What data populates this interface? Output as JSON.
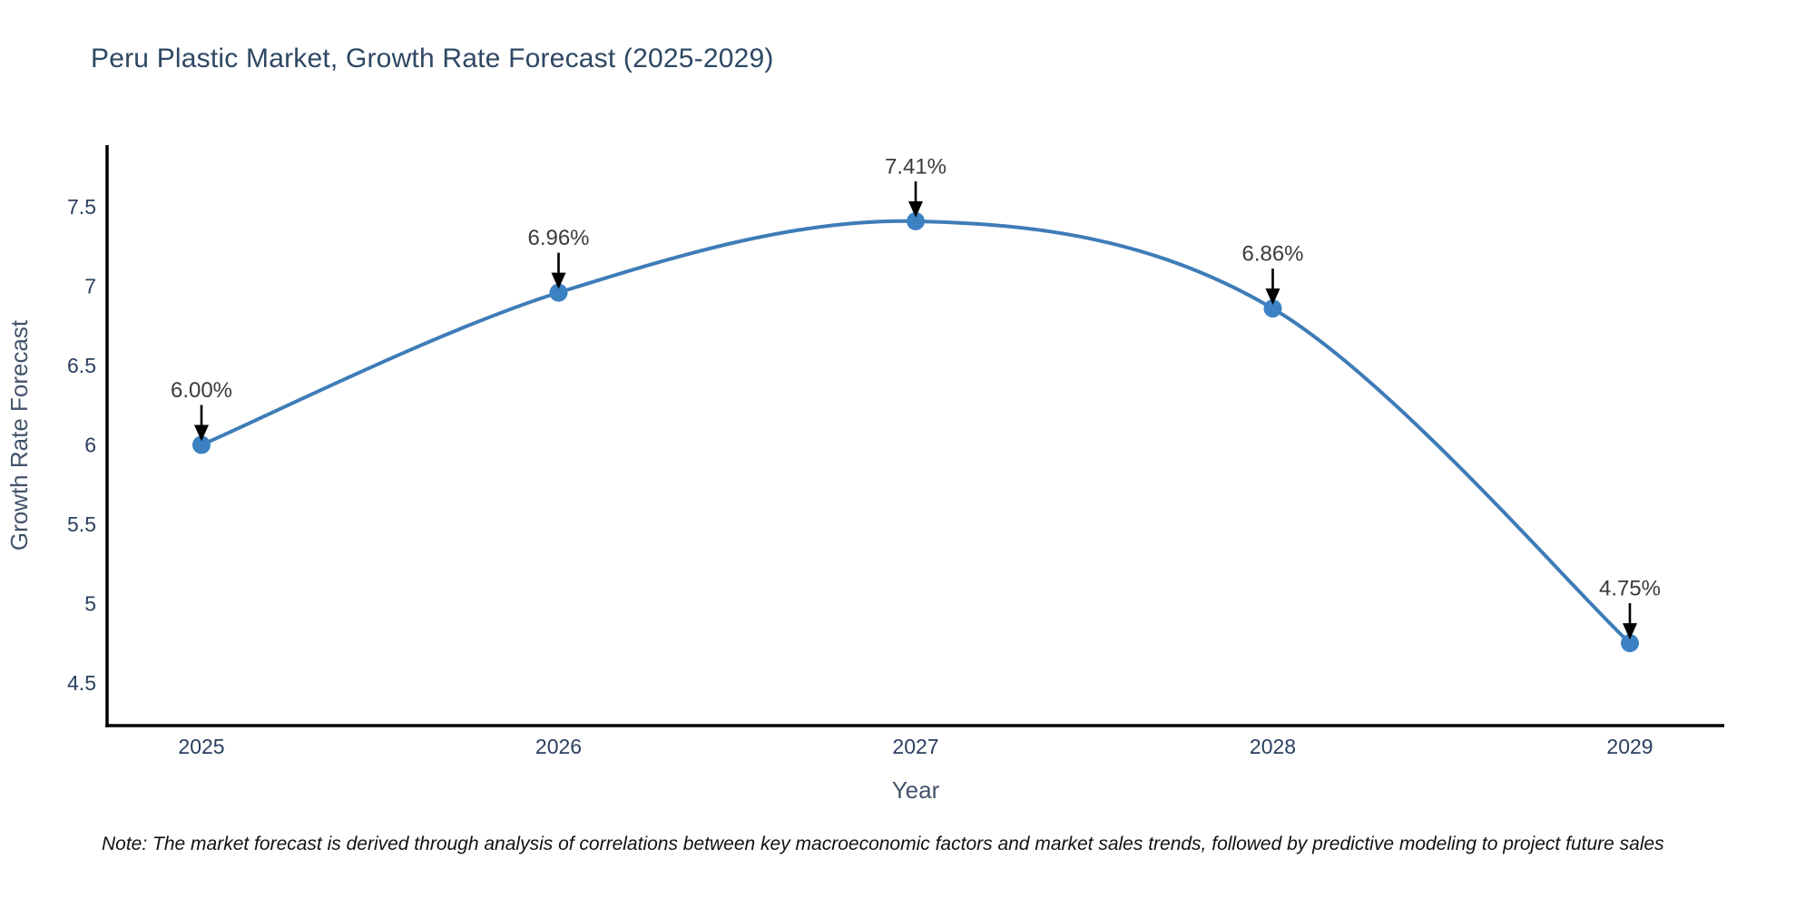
{
  "chart_data": {
    "type": "line",
    "line_shape": "spline",
    "title": "Peru Plastic Market, Growth Rate Forecast (2025-2029)",
    "xlabel": "Year",
    "ylabel": "Growth Rate Forecast",
    "categories": [
      "2025",
      "2026",
      "2027",
      "2028",
      "2029"
    ],
    "values": [
      6.0,
      6.96,
      7.41,
      6.86,
      4.75
    ],
    "point_labels": [
      "6.00%",
      "6.96%",
      "7.41%",
      "6.86%",
      "4.75%"
    ],
    "ytick_values": [
      4.5,
      5,
      5.5,
      6,
      6.5,
      7,
      7.5
    ],
    "ytick_labels": [
      "4.5",
      "5",
      "5.5",
      "6",
      "6.5",
      "7",
      "7.5"
    ],
    "ylim": [
      4.23,
      7.89
    ],
    "grid": false,
    "legend": "none",
    "colors": {
      "line": "#3e7cb8",
      "marker": "#3c82c2",
      "axis": "#000000",
      "tick_text": "#2a3f5f",
      "axis_title_text": "#42536b",
      "annotation": "#000000"
    }
  },
  "footnote": {
    "text": "Note: The market forecast is derived through analysis of correlations between key macroeconomic factors and market sales trends, followed by predictive modeling to project future sales"
  }
}
